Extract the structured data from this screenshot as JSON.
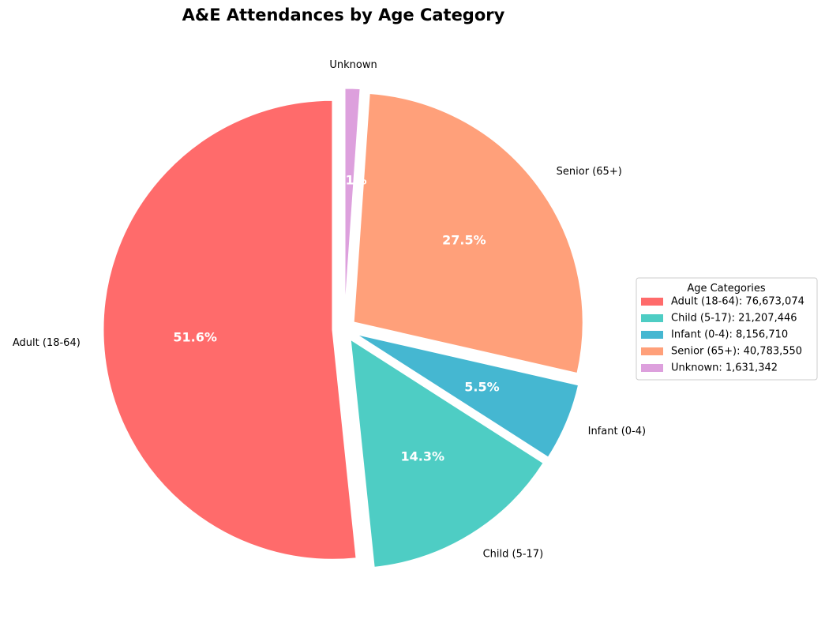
{
  "chart_data": {
    "type": "pie",
    "title": "A&E Attendances by Age Category",
    "start_angle_deg": 90,
    "direction": "counterclockwise",
    "explode": 0.05,
    "legend": {
      "title": "Age Categories",
      "placement": "center-right"
    },
    "slices": [
      {
        "label": "Adult (18-64)",
        "value": 76673074,
        "legend_label": "Adult (18-64): 76,673,074",
        "pct_label": "51.6%",
        "color": "#ff6b6b"
      },
      {
        "label": "Child (5-17)",
        "value": 21207446,
        "legend_label": "Child (5-17): 21,207,446",
        "pct_label": "14.3%",
        "color": "#4ecdc4"
      },
      {
        "label": "Infant (0-4)",
        "value": 8156710,
        "legend_label": "Infant (0-4): 8,156,710",
        "pct_label": "5.5%",
        "color": "#45b7d1"
      },
      {
        "label": "Senior (65+)",
        "value": 40783550,
        "legend_label": "Senior (65+): 40,783,550",
        "pct_label": "27.5%",
        "color": "#ffa07a"
      },
      {
        "label": "Unknown",
        "value": 1631342,
        "legend_label": "Unknown: 1,631,342",
        "pct_label": "1.1%",
        "color": "#dda0dd"
      }
    ]
  }
}
